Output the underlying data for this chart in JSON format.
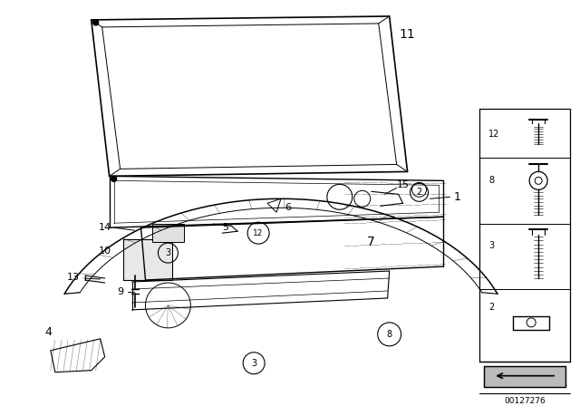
{
  "bg_color": "#ffffff",
  "line_color": "#000000",
  "part_number": "00127276",
  "figsize": [
    6.4,
    4.48
  ],
  "dpi": 100
}
